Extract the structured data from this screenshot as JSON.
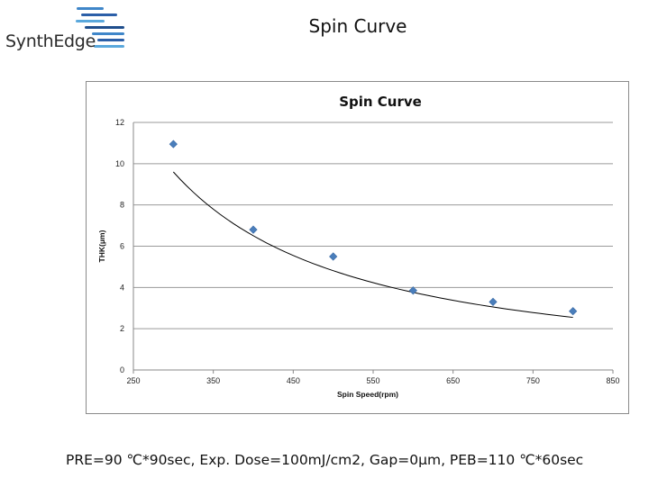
{
  "logo": {
    "text": "SynthEdge",
    "colors": [
      "#2b5fa8",
      "#3f86c9",
      "#5aa8dc",
      "#1f4e8c"
    ]
  },
  "page_title": "Spin Curve",
  "caption": "PRE=90 ℃*90sec, Exp. Dose=100mJ/cm2, Gap=0μm, PEB=110 ℃*60sec",
  "chart_data": {
    "type": "scatter",
    "title": "Spin Curve",
    "xlabel": "Spin Speed(rpm)",
    "ylabel": "THK(μm)",
    "xlim": [
      250,
      850
    ],
    "ylim": [
      0,
      12
    ],
    "x_ticks": [
      250,
      350,
      450,
      550,
      650,
      750,
      850
    ],
    "y_ticks": [
      0,
      2,
      4,
      6,
      8,
      10,
      12
    ],
    "grid": "horizontal",
    "marker_color": "#4a7ebb",
    "trend_color": "#000000",
    "series": [
      {
        "x": [
          300,
          400,
          500,
          600,
          700,
          800
        ],
        "y": [
          10.95,
          6.8,
          5.5,
          3.85,
          3.3,
          2.85
        ]
      }
    ],
    "trendline": {
      "type": "power",
      "x_range": [
        300,
        800
      ],
      "y_at_start": 9.6,
      "y_at_end": 2.55
    }
  }
}
